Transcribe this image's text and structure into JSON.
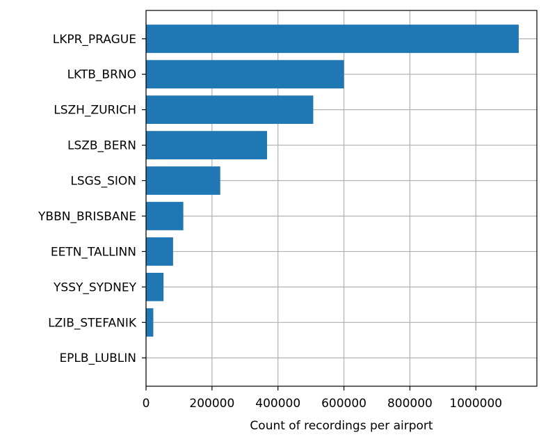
{
  "chart_data": {
    "type": "bar",
    "orientation": "horizontal",
    "categories": [
      "LKPR_PRAGUE",
      "LKTB_BRNO",
      "LSZH_ZURICH",
      "LSZB_BERN",
      "LSGS_SION",
      "YBBN_BRISBANE",
      "EETN_TALLINN",
      "YSSY_SYDNEY",
      "LZIB_STEFANIK",
      "EPLB_LUBLIN"
    ],
    "values": [
      1130000,
      600000,
      507000,
      367000,
      225000,
      113000,
      82000,
      53000,
      22000,
      0
    ],
    "title": "",
    "xlabel": "Count of recordings per airport",
    "ylabel": "",
    "xlim": [
      0,
      1185000
    ],
    "xticks": [
      0,
      200000,
      400000,
      600000,
      800000,
      1000000
    ],
    "xtick_labels": [
      "0",
      "200000",
      "400000",
      "600000",
      "800000",
      "1000000"
    ],
    "grid": true,
    "bar_color": "#1f77b4",
    "grid_color": "#b0b0b0"
  }
}
